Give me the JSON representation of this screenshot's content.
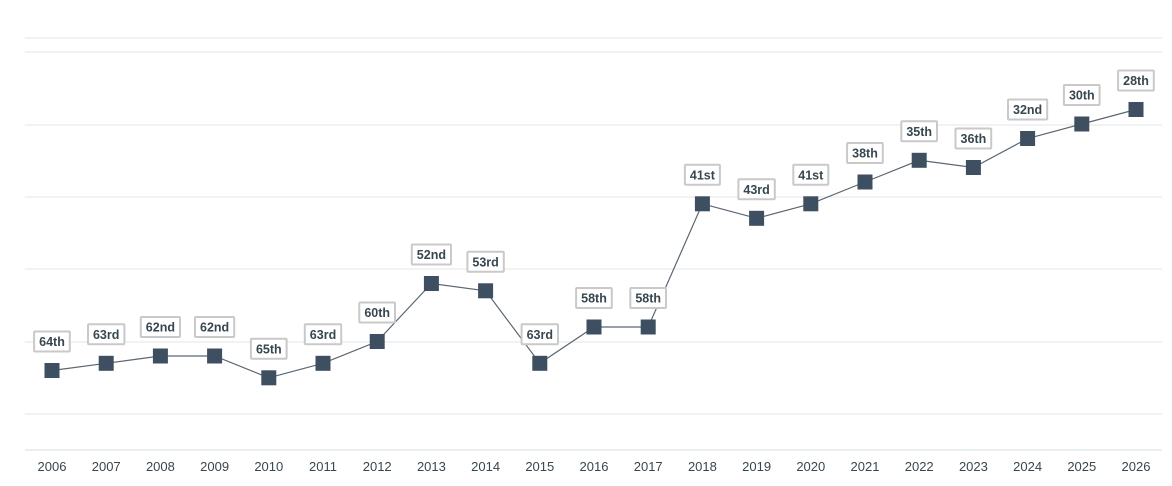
{
  "chart_data": {
    "type": "line",
    "title": "",
    "xlabel": "",
    "ylabel": "",
    "y_axis_inverted": true,
    "ylim": [
      72,
      20
    ],
    "grid": true,
    "legend": "none",
    "categories": [
      "2006",
      "2007",
      "2008",
      "2009",
      "2010",
      "2011",
      "2012",
      "2013",
      "2014",
      "2015",
      "2016",
      "2017",
      "2018",
      "2019",
      "2020",
      "2021",
      "2022",
      "2023",
      "2024",
      "2025",
      "2026"
    ],
    "series": [
      {
        "values": [
          64,
          63,
          62,
          62,
          65,
          63,
          60,
          52,
          53,
          63,
          58,
          58,
          41,
          43,
          41,
          38,
          35,
          36,
          32,
          30,
          28
        ],
        "labels": [
          "64th",
          "63rd",
          "62nd",
          "62nd",
          "65th",
          "63rd",
          "60th",
          "52nd",
          "53rd",
          "63rd",
          "58th",
          "58th",
          "41st",
          "43rd",
          "41st",
          "38th",
          "35th",
          "36th",
          "32nd",
          "30th",
          "28th"
        ]
      }
    ],
    "colors": {
      "line": "#5b6670",
      "marker": "#3d4f60",
      "label_border": "#c9c9c9",
      "text": "#37474f",
      "grid": "#e3e6ea"
    }
  }
}
